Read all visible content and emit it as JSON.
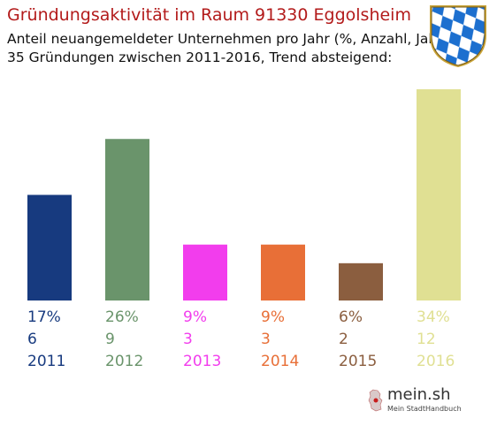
{
  "header": {
    "title": "Gründungsaktivität im Raum 91330 Eggolsheim",
    "subtitle_line1": "Anteil neuangemeldeter Unternehmen pro Jahr (%, Anzahl, Jahr)",
    "subtitle_line2": "35 Gründungen zwischen 2011-2016, Trend absteigend:"
  },
  "crest": {
    "icon": "bavarian-lozenge-crest-icon"
  },
  "logo": {
    "name": "mein.sh",
    "tagline": "Mein StadtHandbuch",
    "icon": "germany-map-icon"
  },
  "chart_data": {
    "type": "bar",
    "categories": [
      "2011",
      "2012",
      "2013",
      "2014",
      "2015",
      "2016"
    ],
    "values": [
      17,
      26,
      9,
      9,
      6,
      34
    ],
    "percent_labels": [
      "17%",
      "26%",
      "9%",
      "9%",
      "6%",
      "34%"
    ],
    "counts": [
      6,
      9,
      3,
      3,
      2,
      12
    ],
    "colors": [
      "#173a7f",
      "#6a946b",
      "#f23ded",
      "#e86f37",
      "#8b5e3f",
      "#e0e093"
    ],
    "ylim": [
      0,
      34
    ],
    "grid": false,
    "legend": "none"
  }
}
